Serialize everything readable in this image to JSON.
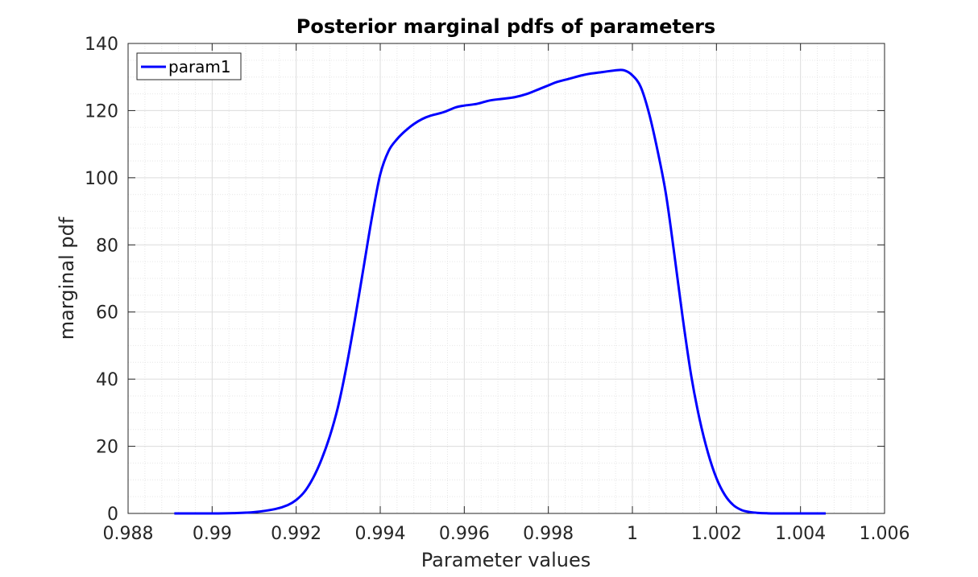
{
  "chart_data": {
    "type": "line",
    "title": "Posterior marginal pdfs of parameters",
    "xlabel": "Parameter values",
    "ylabel": "marginal pdf",
    "xlim": [
      0.988,
      1.006
    ],
    "ylim": [
      0,
      140
    ],
    "xticks": [
      0.988,
      0.99,
      0.992,
      0.994,
      0.996,
      0.998,
      1,
      1.002,
      1.004,
      1.006
    ],
    "xtick_labels": [
      "0.988",
      "0.99",
      "0.992",
      "0.994",
      "0.996",
      "0.998",
      "1",
      "1.002",
      "1.004",
      "1.006"
    ],
    "yticks": [
      0,
      20,
      40,
      60,
      80,
      100,
      120,
      140
    ],
    "ytick_labels": [
      "0",
      "20",
      "40",
      "60",
      "80",
      "100",
      "120",
      "140"
    ],
    "grid": true,
    "minor_grid": true,
    "legend_position": "top-left",
    "series": [
      {
        "name": "param1",
        "color": "#0000ff",
        "x": [
          0.9891,
          0.99,
          0.9905,
          0.991,
          0.9915,
          0.9918,
          0.992,
          0.9922,
          0.9924,
          0.9926,
          0.9928,
          0.993,
          0.9932,
          0.9934,
          0.9936,
          0.9938,
          0.994,
          0.9942,
          0.9944,
          0.9946,
          0.9948,
          0.995,
          0.9952,
          0.9955,
          0.9958,
          0.996,
          0.9963,
          0.9966,
          0.9969,
          0.9972,
          0.9975,
          0.9978,
          0.998,
          0.9982,
          0.9985,
          0.9988,
          0.999,
          0.9993,
          0.9996,
          0.9998,
          1.0,
          1.0002,
          1.0004,
          1.0006,
          1.0008,
          1.001,
          1.0012,
          1.0014,
          1.0016,
          1.0018,
          1.002,
          1.0022,
          1.0024,
          1.0026,
          1.0028,
          1.003,
          1.0032,
          1.0034,
          1.0038,
          1.0042,
          1.0046
        ],
        "y": [
          0,
          0,
          0.1,
          0.4,
          1.3,
          2.5,
          4,
          6.5,
          10.5,
          16,
          23,
          32,
          44,
          58,
          73,
          88,
          101,
          108,
          111.5,
          114,
          116,
          117.5,
          118.5,
          119.5,
          121,
          121.5,
          122,
          123,
          123.5,
          124,
          125,
          126.5,
          127.5,
          128.5,
          129.5,
          130.5,
          131,
          131.5,
          132,
          132,
          130.5,
          127,
          119,
          108,
          95,
          77,
          58,
          41,
          28,
          18,
          10.5,
          5.5,
          2.5,
          1,
          0.4,
          0.15,
          0.05,
          0,
          0,
          0,
          0
        ]
      }
    ]
  }
}
